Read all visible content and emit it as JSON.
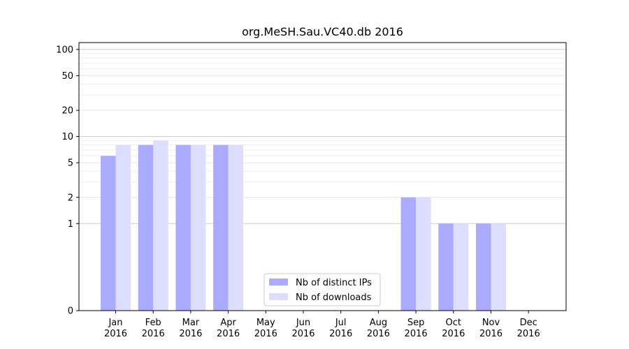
{
  "chart_data": {
    "type": "bar",
    "title": "org.MeSH.Sau.VC40.db 2016",
    "xlabel": "",
    "ylabel": "",
    "yscale": "symlog",
    "ylim": [
      0,
      120
    ],
    "yticks": [
      0,
      1,
      2,
      5,
      10,
      20,
      50,
      100
    ],
    "categories": [
      [
        "Jan",
        "2016"
      ],
      [
        "Feb",
        "2016"
      ],
      [
        "Mar",
        "2016"
      ],
      [
        "Apr",
        "2016"
      ],
      [
        "May",
        "2016"
      ],
      [
        "Jun",
        "2016"
      ],
      [
        "Jul",
        "2016"
      ],
      [
        "Aug",
        "2016"
      ],
      [
        "Sep",
        "2016"
      ],
      [
        "Oct",
        "2016"
      ],
      [
        "Nov",
        "2016"
      ],
      [
        "Dec",
        "2016"
      ]
    ],
    "series": [
      {
        "name": "Nb of distinct IPs",
        "color": "#aaaaff",
        "values": [
          6,
          8,
          8,
          8,
          0,
          0,
          0,
          0,
          2,
          1,
          1,
          0
        ]
      },
      {
        "name": "Nb of downloads",
        "color": "#ddddff",
        "values": [
          8,
          9,
          8,
          8,
          0,
          0,
          0,
          0,
          2,
          1,
          1,
          0
        ]
      }
    ],
    "legend": "lower-center",
    "grid": true
  }
}
